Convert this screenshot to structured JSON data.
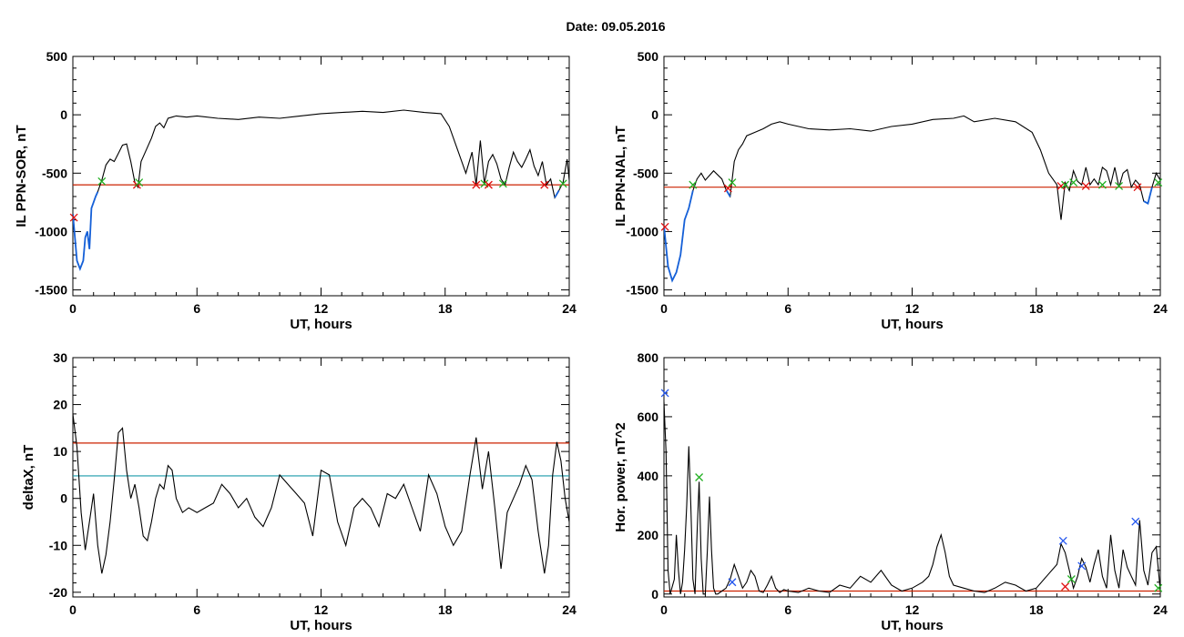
{
  "figure": {
    "title": "Date:  09.05.2016"
  },
  "colors": {
    "axis": "#000000",
    "data": "#000000",
    "highlight": "#1560d8",
    "red_line": "#cc2200",
    "cyan_line": "#1a9aaa",
    "marker_red": "#e01010",
    "marker_green": "#22b022",
    "marker_blue": "#2255ee"
  },
  "chart_data": [
    {
      "type": "line",
      "id": "p1",
      "xlabel": "UT, hours",
      "ylabel": "IL PPN-SOR, nT",
      "xlim": [
        0,
        24
      ],
      "ylim": [
        -1550,
        500
      ],
      "xticks": [
        0,
        6,
        12,
        18,
        24
      ],
      "yticks": [
        500,
        0,
        -500,
        -1000,
        -1500
      ],
      "threshold": [
        {
          "name": "red",
          "y": -600,
          "color": "#cc2200"
        }
      ],
      "highlight_below": -600,
      "series": [
        {
          "x": [
            0,
            0.2,
            0.35,
            0.5,
            0.6,
            0.7,
            0.8,
            0.9,
            1.0,
            1.1,
            1.2,
            1.4,
            1.6,
            1.8,
            2.0,
            2.2,
            2.4,
            2.6,
            2.8,
            3.0,
            3.15,
            3.3,
            3.5,
            3.8,
            4.0,
            4.2,
            4.4,
            4.6,
            4.8,
            5.0,
            5.5,
            6,
            7,
            8,
            9,
            10,
            11,
            12,
            13,
            14,
            15,
            16,
            17,
            17.8,
            18.2,
            18.6,
            19.0,
            19.3,
            19.5,
            19.7,
            19.9,
            20.1,
            20.3,
            20.5,
            20.7,
            20.9,
            21.1,
            21.3,
            21.5,
            21.7,
            21.9,
            22.1,
            22.3,
            22.5,
            22.7,
            22.9,
            23.1,
            23.3,
            23.5,
            23.7,
            23.9,
            24
          ],
          "y": [
            -850,
            -1250,
            -1320,
            -1250,
            -1050,
            -1000,
            -1150,
            -800,
            -750,
            -700,
            -660,
            -560,
            -430,
            -380,
            -400,
            -330,
            -260,
            -250,
            -400,
            -580,
            -620,
            -400,
            -320,
            -200,
            -100,
            -70,
            -110,
            -30,
            -20,
            -10,
            -20,
            -10,
            -30,
            -40,
            -20,
            -30,
            -10,
            10,
            20,
            30,
            20,
            40,
            20,
            10,
            -100,
            -300,
            -500,
            -320,
            -600,
            -220,
            -590,
            -400,
            -340,
            -420,
            -550,
            -600,
            -450,
            -320,
            -400,
            -450,
            -380,
            -300,
            -440,
            -520,
            -400,
            -600,
            -550,
            -710,
            -650,
            -580,
            -380,
            -560
          ]
        }
      ],
      "markers": [
        {
          "x": 0.05,
          "y": -880,
          "color": "red"
        },
        {
          "x": 1.4,
          "y": -570,
          "color": "green"
        },
        {
          "x": 3.1,
          "y": -600,
          "color": "red"
        },
        {
          "x": 3.2,
          "y": -580,
          "color": "green"
        },
        {
          "x": 19.5,
          "y": -600,
          "color": "red"
        },
        {
          "x": 19.9,
          "y": -590,
          "color": "green"
        },
        {
          "x": 20.1,
          "y": -600,
          "color": "red"
        },
        {
          "x": 20.8,
          "y": -590,
          "color": "green"
        },
        {
          "x": 22.8,
          "y": -600,
          "color": "red"
        },
        {
          "x": 23.7,
          "y": -590,
          "color": "green"
        }
      ]
    },
    {
      "type": "line",
      "id": "p2",
      "xlabel": "UT, hours",
      "ylabel": "IL PPN-NAL, nT",
      "xlim": [
        0,
        24
      ],
      "ylim": [
        -1550,
        500
      ],
      "xticks": [
        0,
        6,
        12,
        18,
        24
      ],
      "yticks": [
        500,
        0,
        -500,
        -1000,
        -1500
      ],
      "threshold": [
        {
          "name": "red",
          "y": -620,
          "color": "#cc2200"
        }
      ],
      "highlight_below": -620,
      "series": [
        {
          "x": [
            0,
            0.2,
            0.4,
            0.6,
            0.8,
            1.0,
            1.2,
            1.4,
            1.6,
            1.8,
            2.0,
            2.4,
            2.8,
            3.0,
            3.2,
            3.4,
            3.6,
            3.8,
            4.0,
            4.4,
            4.8,
            5.2,
            5.6,
            6,
            7,
            8,
            9,
            10,
            11,
            12,
            13,
            14,
            14.5,
            15,
            16,
            17,
            17.8,
            18.2,
            18.6,
            19.0,
            19.2,
            19.4,
            19.6,
            19.8,
            20.0,
            20.2,
            20.4,
            20.6,
            20.8,
            21.0,
            21.2,
            21.4,
            21.6,
            21.8,
            22.0,
            22.2,
            22.4,
            22.6,
            22.8,
            23.0,
            23.2,
            23.4,
            23.6,
            23.8,
            24
          ],
          "y": [
            -950,
            -1300,
            -1420,
            -1350,
            -1200,
            -900,
            -800,
            -650,
            -550,
            -500,
            -560,
            -480,
            -550,
            -640,
            -700,
            -400,
            -300,
            -250,
            -180,
            -150,
            -120,
            -80,
            -60,
            -80,
            -120,
            -130,
            -120,
            -140,
            -100,
            -80,
            -40,
            -30,
            -10,
            -60,
            -30,
            -60,
            -150,
            -300,
            -500,
            -600,
            -900,
            -580,
            -650,
            -480,
            -570,
            -600,
            -450,
            -600,
            -550,
            -600,
            -450,
            -480,
            -600,
            -450,
            -620,
            -500,
            -470,
            -620,
            -560,
            -600,
            -740,
            -760,
            -620,
            -500,
            -560
          ]
        }
      ],
      "markers": [
        {
          "x": 0.05,
          "y": -960,
          "color": "red"
        },
        {
          "x": 1.4,
          "y": -600,
          "color": "green"
        },
        {
          "x": 3.1,
          "y": -630,
          "color": "red"
        },
        {
          "x": 3.3,
          "y": -580,
          "color": "green"
        },
        {
          "x": 19.2,
          "y": -610,
          "color": "red"
        },
        {
          "x": 19.4,
          "y": -600,
          "color": "green"
        },
        {
          "x": 19.8,
          "y": -580,
          "color": "green"
        },
        {
          "x": 20.4,
          "y": -610,
          "color": "red"
        },
        {
          "x": 21.2,
          "y": -600,
          "color": "green"
        },
        {
          "x": 22.0,
          "y": -610,
          "color": "green"
        },
        {
          "x": 22.9,
          "y": -620,
          "color": "red"
        },
        {
          "x": 23.9,
          "y": -580,
          "color": "green"
        }
      ]
    },
    {
      "type": "line",
      "id": "p3",
      "xlabel": "UT, hours",
      "ylabel": "deltaX, nT",
      "xlim": [
        0,
        24
      ],
      "ylim": [
        -21,
        30
      ],
      "xticks": [
        0,
        6,
        12,
        18,
        24
      ],
      "yticks": [
        30,
        20,
        10,
        0,
        -10,
        -20
      ],
      "threshold": [
        {
          "name": "red",
          "y": 11.8,
          "color": "#cc2200"
        },
        {
          "name": "cyan",
          "y": 4.8,
          "color": "#1a9aaa"
        }
      ],
      "series": [
        {
          "x": [
            0,
            0.2,
            0.4,
            0.6,
            0.8,
            1.0,
            1.2,
            1.4,
            1.6,
            1.8,
            2.0,
            2.2,
            2.4,
            2.6,
            2.8,
            3.0,
            3.2,
            3.4,
            3.6,
            3.8,
            4.0,
            4.2,
            4.4,
            4.6,
            4.8,
            5.0,
            5.3,
            5.6,
            6.0,
            6.4,
            6.8,
            7.2,
            7.6,
            8.0,
            8.4,
            8.8,
            9.2,
            9.6,
            10.0,
            10.4,
            10.8,
            11.2,
            11.6,
            12.0,
            12.4,
            12.8,
            13.2,
            13.6,
            14.0,
            14.4,
            14.8,
            15.2,
            15.6,
            16.0,
            16.4,
            16.8,
            17.2,
            17.6,
            18.0,
            18.4,
            18.8,
            19.2,
            19.5,
            19.8,
            20.1,
            20.4,
            20.7,
            21.0,
            21.3,
            21.6,
            21.9,
            22.2,
            22.5,
            22.8,
            23.0,
            23.2,
            23.4,
            23.6,
            23.8,
            24
          ],
          "y": [
            18,
            11,
            -3,
            -11,
            -5,
            1,
            -10,
            -16,
            -12,
            -5,
            4,
            14,
            15,
            6,
            0,
            3,
            -2,
            -8,
            -9,
            -5,
            0,
            3,
            2,
            7,
            6,
            0,
            -3,
            -2,
            -3,
            -2,
            -1,
            3,
            1,
            -2,
            0,
            -4,
            -6,
            -2,
            5,
            3,
            1,
            -1,
            -8,
            6,
            5,
            -5,
            -10,
            -2,
            0,
            -2,
            -6,
            1,
            0,
            3,
            -2,
            -7,
            5,
            1,
            -6,
            -10,
            -7,
            5,
            13,
            2,
            10,
            -2,
            -15,
            -3,
            0,
            3,
            7,
            4,
            -7,
            -16,
            -10,
            5,
            12,
            8,
            0,
            -5
          ]
        }
      ],
      "markers": []
    },
    {
      "type": "line",
      "id": "p4",
      "xlabel": "UT, hours",
      "ylabel": "Hor. power, nT^2",
      "xlim": [
        0,
        24
      ],
      "ylim": [
        -10,
        800
      ],
      "xticks": [
        0,
        6,
        12,
        18,
        24
      ],
      "yticks": [
        800,
        600,
        400,
        200,
        0
      ],
      "threshold": [
        {
          "name": "red",
          "y": 10,
          "color": "#cc2200"
        }
      ],
      "series": [
        {
          "x": [
            0,
            0.1,
            0.2,
            0.3,
            0.5,
            0.6,
            0.7,
            0.8,
            0.9,
            1.0,
            1.1,
            1.2,
            1.3,
            1.4,
            1.5,
            1.6,
            1.7,
            1.8,
            1.9,
            2.0,
            2.1,
            2.2,
            2.3,
            2.4,
            2.5,
            2.6,
            2.8,
            3.0,
            3.2,
            3.4,
            3.6,
            3.8,
            4.0,
            4.2,
            4.4,
            4.6,
            4.8,
            5.0,
            5.2,
            5.4,
            5.6,
            5.8,
            6.0,
            6.5,
            7.0,
            7.5,
            8.0,
            8.5,
            9.0,
            9.5,
            10.0,
            10.5,
            11.0,
            11.5,
            12.0,
            12.5,
            12.8,
            13.0,
            13.2,
            13.4,
            13.6,
            13.8,
            14.0,
            14.5,
            15.0,
            15.5,
            16.0,
            16.5,
            17.0,
            17.5,
            18.0,
            18.5,
            19.0,
            19.2,
            19.4,
            19.6,
            19.8,
            20.0,
            20.2,
            20.4,
            20.6,
            20.8,
            21.0,
            21.2,
            21.4,
            21.6,
            21.8,
            22.0,
            22.2,
            22.4,
            22.6,
            22.8,
            23.0,
            23.2,
            23.4,
            23.6,
            23.8,
            24
          ],
          "y": [
            650,
            480,
            80,
            0,
            50,
            200,
            80,
            0,
            40,
            150,
            300,
            500,
            300,
            50,
            0,
            200,
            380,
            120,
            0,
            0,
            150,
            330,
            150,
            20,
            0,
            0,
            10,
            20,
            50,
            100,
            60,
            20,
            40,
            80,
            60,
            10,
            5,
            30,
            60,
            20,
            5,
            15,
            10,
            5,
            20,
            10,
            5,
            30,
            20,
            60,
            40,
            80,
            30,
            10,
            20,
            40,
            60,
            100,
            160,
            200,
            140,
            60,
            30,
            20,
            10,
            5,
            20,
            40,
            30,
            10,
            20,
            60,
            100,
            170,
            140,
            80,
            20,
            60,
            120,
            90,
            40,
            100,
            150,
            60,
            20,
            200,
            80,
            20,
            150,
            90,
            60,
            30,
            250,
            80,
            30,
            140,
            160,
            10
          ]
        }
      ],
      "markers": [
        {
          "x": 0.05,
          "y": 680,
          "color": "blue"
        },
        {
          "x": 1.7,
          "y": 395,
          "color": "green"
        },
        {
          "x": 3.3,
          "y": 40,
          "color": "blue"
        },
        {
          "x": 19.3,
          "y": 180,
          "color": "blue"
        },
        {
          "x": 19.4,
          "y": 25,
          "color": "red"
        },
        {
          "x": 19.7,
          "y": 50,
          "color": "green"
        },
        {
          "x": 20.2,
          "y": 95,
          "color": "blue"
        },
        {
          "x": 22.8,
          "y": 245,
          "color": "blue"
        },
        {
          "x": 23.9,
          "y": 20,
          "color": "green"
        }
      ]
    }
  ]
}
